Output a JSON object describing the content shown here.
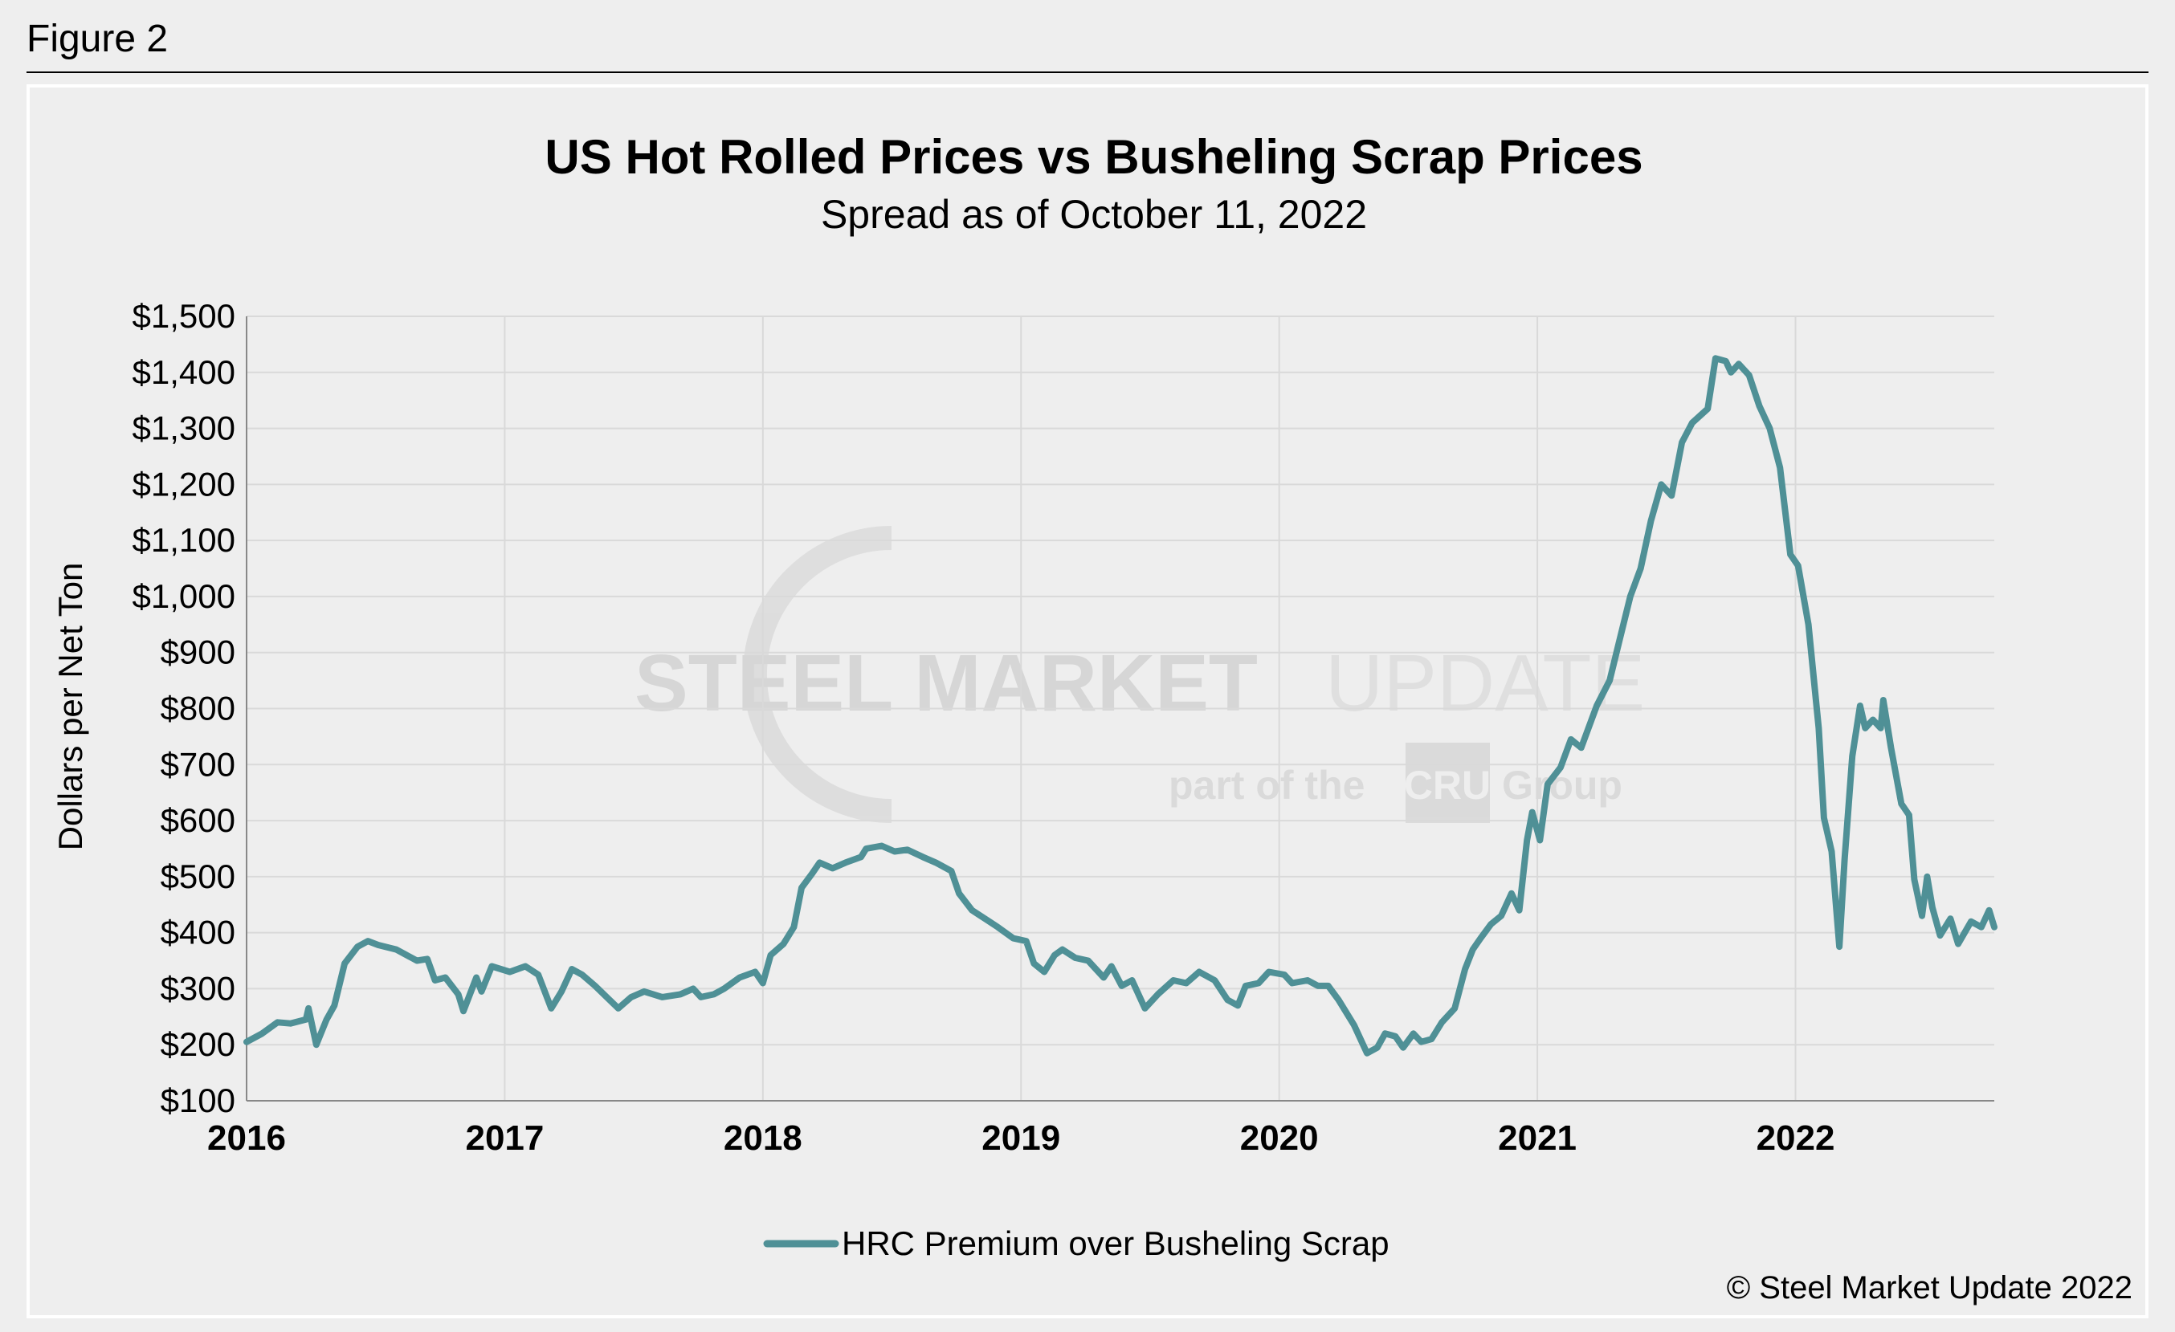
{
  "figure_label": "Figure 2",
  "copyright": "© Steel Market Update 2022",
  "watermark": {
    "main_bold": "STEEL MARKET",
    "main_light": "UPDATE",
    "sub_left": "part of the",
    "sub_logo": "CRU",
    "sub_right": "Group"
  },
  "colors": {
    "line": "#4f9096",
    "background": "#eeeeee",
    "grid": "#d9d9d9"
  },
  "chart_data": {
    "type": "line",
    "title": "US Hot Rolled Prices vs Busheling Scrap Prices",
    "subtitle": "Spread as of October 11, 2022",
    "xlabel": "",
    "ylabel": "Dollars per Net Ton",
    "xlim": [
      2016,
      2022.77
    ],
    "ylim": [
      100,
      1500
    ],
    "x_ticks": [
      "2016",
      "2017",
      "2018",
      "2019",
      "2020",
      "2021",
      "2022"
    ],
    "y_ticks": [
      "$100",
      "$200",
      "$300",
      "$400",
      "$500",
      "$600",
      "$700",
      "$800",
      "$900",
      "$1,000",
      "$1,100",
      "$1,200",
      "$1,300",
      "$1,400",
      "$1,500"
    ],
    "grid": true,
    "legend_position": "bottom",
    "series": [
      {
        "name": "HRC Premium over Busheling Scrap",
        "x": [
          2016.0,
          2016.06,
          2016.12,
          2016.17,
          2016.23,
          2016.24,
          2016.27,
          2016.31,
          2016.34,
          2016.38,
          2016.43,
          2016.47,
          2016.51,
          2016.58,
          2016.66,
          2016.7,
          2016.73,
          2016.77,
          2016.82,
          2016.84,
          2016.89,
          2016.91,
          2016.95,
          2017.02,
          2017.08,
          2017.13,
          2017.18,
          2017.22,
          2017.26,
          2017.3,
          2017.35,
          2017.44,
          2017.49,
          2017.54,
          2017.61,
          2017.68,
          2017.73,
          2017.76,
          2017.81,
          2017.85,
          2017.91,
          2017.97,
          2018.0,
          2018.03,
          2018.08,
          2018.12,
          2018.15,
          2018.19,
          2018.22,
          2018.27,
          2018.32,
          2018.38,
          2018.4,
          2018.46,
          2018.51,
          2018.56,
          2018.62,
          2018.67,
          2018.73,
          2018.76,
          2018.81,
          2018.86,
          2018.91,
          2018.97,
          2019.02,
          2019.05,
          2019.09,
          2019.13,
          2019.16,
          2019.21,
          2019.26,
          2019.32,
          2019.35,
          2019.39,
          2019.43,
          2019.48,
          2019.53,
          2019.59,
          2019.64,
          2019.69,
          2019.75,
          2019.8,
          2019.84,
          2019.87,
          2019.92,
          2019.96,
          2020.02,
          2020.05,
          2020.11,
          2020.15,
          2020.19,
          2020.23,
          2020.29,
          2020.34,
          2020.38,
          2020.41,
          2020.45,
          2020.48,
          2020.52,
          2020.55,
          2020.59,
          2020.63,
          2020.68,
          2020.72,
          2020.75,
          2020.78,
          2020.82,
          2020.86,
          2020.9,
          2020.93,
          2020.96,
          2020.98,
          2021.01,
          2021.04,
          2021.09,
          2021.13,
          2021.17,
          2021.23,
          2021.28,
          2021.32,
          2021.36,
          2021.4,
          2021.44,
          2021.48,
          2021.52,
          2021.56,
          2021.6,
          2021.66,
          2021.69,
          2021.73,
          2021.75,
          2021.78,
          2021.82,
          2021.86,
          2021.9,
          2021.94,
          2021.98,
          2022.01,
          2022.05,
          2022.09,
          2022.11,
          2022.14,
          2022.17,
          2022.19,
          2022.22,
          2022.25,
          2022.27,
          2022.3,
          2022.33,
          2022.34,
          2022.37,
          2022.41,
          2022.44,
          2022.46,
          2022.49,
          2022.51,
          2022.53,
          2022.56,
          2022.6,
          2022.63,
          2022.68,
          2022.72,
          2022.75,
          2022.77
        ],
        "y": [
          205,
          220,
          240,
          238,
          245,
          265,
          200,
          245,
          270,
          345,
          375,
          385,
          378,
          370,
          350,
          353,
          315,
          320,
          290,
          260,
          320,
          295,
          340,
          330,
          340,
          325,
          265,
          295,
          335,
          325,
          305,
          265,
          285,
          295,
          285,
          290,
          300,
          285,
          290,
          300,
          320,
          330,
          310,
          360,
          380,
          410,
          480,
          505,
          525,
          515,
          525,
          535,
          550,
          555,
          545,
          548,
          535,
          525,
          510,
          470,
          440,
          425,
          410,
          390,
          385,
          345,
          330,
          360,
          370,
          355,
          350,
          320,
          340,
          305,
          315,
          265,
          290,
          315,
          310,
          330,
          315,
          280,
          270,
          305,
          310,
          330,
          325,
          310,
          315,
          305,
          305,
          280,
          235,
          185,
          195,
          220,
          215,
          195,
          220,
          205,
          210,
          240,
          265,
          335,
          370,
          390,
          415,
          430,
          470,
          440,
          565,
          615,
          565,
          665,
          695,
          745,
          730,
          805,
          850,
          925,
          1000,
          1050,
          1135,
          1200,
          1180,
          1275,
          1310,
          1335,
          1425,
          1420,
          1400,
          1415,
          1395,
          1340,
          1300,
          1230,
          1075,
          1055,
          950,
          765,
          605,
          545,
          375,
          530,
          715,
          805,
          765,
          780,
          765,
          815,
          730,
          630,
          610,
          495,
          430,
          500,
          445,
          395,
          425,
          380,
          420,
          410,
          440,
          410
        ]
      }
    ]
  }
}
